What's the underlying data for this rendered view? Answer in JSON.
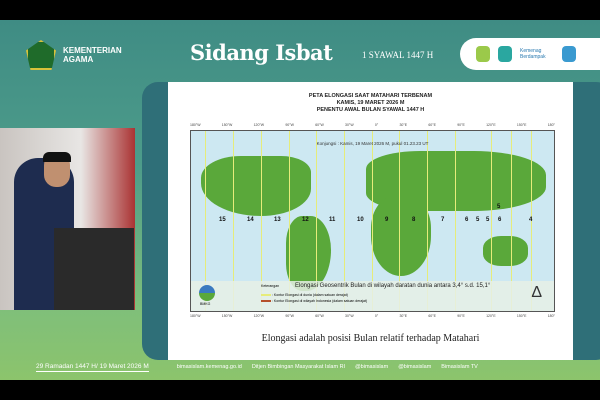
{
  "header": {
    "org": "KEMENTERIAN AGAMA",
    "title": "Sidang Isbat",
    "subtitle": "1 SYAWAL 1447 H",
    "partner_logo_text": "Kemenag Berdampak"
  },
  "slide": {
    "title_lines": [
      "PETA ELONGASI SAAT MATAHARI TERBENAM",
      "KAMIS, 19 MARET 2026 M",
      "PENENTU AWAL BULAN SYAWAL 1447 H"
    ],
    "konjungsi": "Konjungsi : Kamis, 19 Maret 2026 M, pukul 01.23.23 UT",
    "longitude_ticks": [
      "180°W",
      "150°W",
      "120°W",
      "90°W",
      "60°W",
      "30°W",
      "0°",
      "30°E",
      "60°E",
      "90°E",
      "120°E",
      "150°E",
      "180°"
    ],
    "zones": [
      "15",
      "14",
      "13",
      "12",
      "11",
      "10",
      "9",
      "8",
      "7",
      "6",
      "5",
      "5",
      "6",
      "4",
      "5"
    ],
    "legend_title": "Keterangan",
    "legend_items": [
      {
        "label": ": Kontur Elongasi di dunia (dalam satuan derajat)",
        "color": "#e6ec7a"
      },
      {
        "label": ": Kontur Elongasi di wilayah Indonesia (dalam satuan derajat)",
        "color": "#b5502a"
      }
    ],
    "range_text": "Elongasi Geosentrik Bulan di wilayah daratan dunia antara 3,4° s.d. 15,1°",
    "bmkg": "BMKG",
    "caption": "Elongasi adalah posisi Bulan relatif terhadap Matahari"
  },
  "footer": {
    "date": "29 Ramadan 1447 H/ 19 Maret 2026 M",
    "items": [
      "bimasislam.kemenag.go.id",
      "Ditjen Bimbingan Masyarakat Islam RI",
      "@bimasislam",
      "@bimasislam",
      "Bimasislam TV"
    ]
  }
}
